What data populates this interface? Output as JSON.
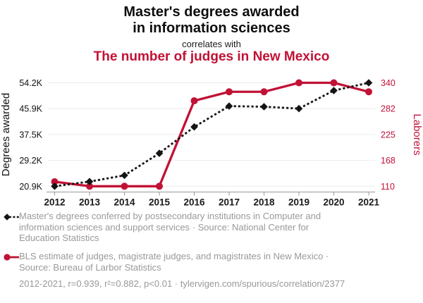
{
  "header": {
    "title_line1": "Master's degrees awarded",
    "title_line2": "in information sciences",
    "connector": "correlates with",
    "subtitle": "The number of judges in New Mexico"
  },
  "colors": {
    "series_black": "#141414",
    "series_red": "#c11236",
    "tick_label_left": "#111111",
    "tick_label_right": "#c11236",
    "gridline": "#ececec",
    "axis_line": "#999999",
    "legend_gray": "#999999"
  },
  "chart_data": {
    "type": "line",
    "categories": [
      "2012",
      "2013",
      "2014",
      "2015",
      "2016",
      "2017",
      "2018",
      "2019",
      "2020",
      "2021"
    ],
    "series": [
      {
        "name": "Master's degrees awarded in information sciences",
        "axis": "left",
        "marker": "diamond",
        "line_style": "dashed",
        "color": "#141414",
        "values": [
          20900,
          22400,
          24400,
          31500,
          40000,
          46700,
          46500,
          45900,
          51700,
          54200
        ]
      },
      {
        "name": "The number of judges in New Mexico",
        "axis": "right",
        "marker": "circle",
        "line_style": "solid",
        "color": "#c11236",
        "values": [
          120,
          110,
          110,
          110,
          300,
          320,
          320,
          340,
          340,
          320
        ]
      }
    ],
    "left_axis": {
      "title": "Degrees awarded",
      "min": 20900,
      "max": 54200,
      "tick_labels": [
        "20.9K",
        "29.2K",
        "37.5K",
        "45.9K",
        "54.2K"
      ]
    },
    "right_axis": {
      "title": "Laborers",
      "min": 110,
      "max": 340,
      "tick_labels": [
        "110",
        "168",
        "225",
        "282",
        "340"
      ]
    },
    "grid": true,
    "legend_position": "bottom"
  },
  "legend": {
    "items": [
      {
        "marker": "black-diamond-dashed-line",
        "text": "Master's degrees conferred by postsecondary institutions in Computer and information sciences and support services · Source: National Center for Education Statistics"
      },
      {
        "marker": "red-circle-solid-line",
        "text": "BLS estimate of judges, magistrate judges, and magistrates in New Mexico · Source: Bureau of Larbor Statistics"
      }
    ],
    "footer": "2012-2021, r=0.939, r²=0.882, p<0.01 · tylervigen.com/spurious/correlation/2377"
  }
}
